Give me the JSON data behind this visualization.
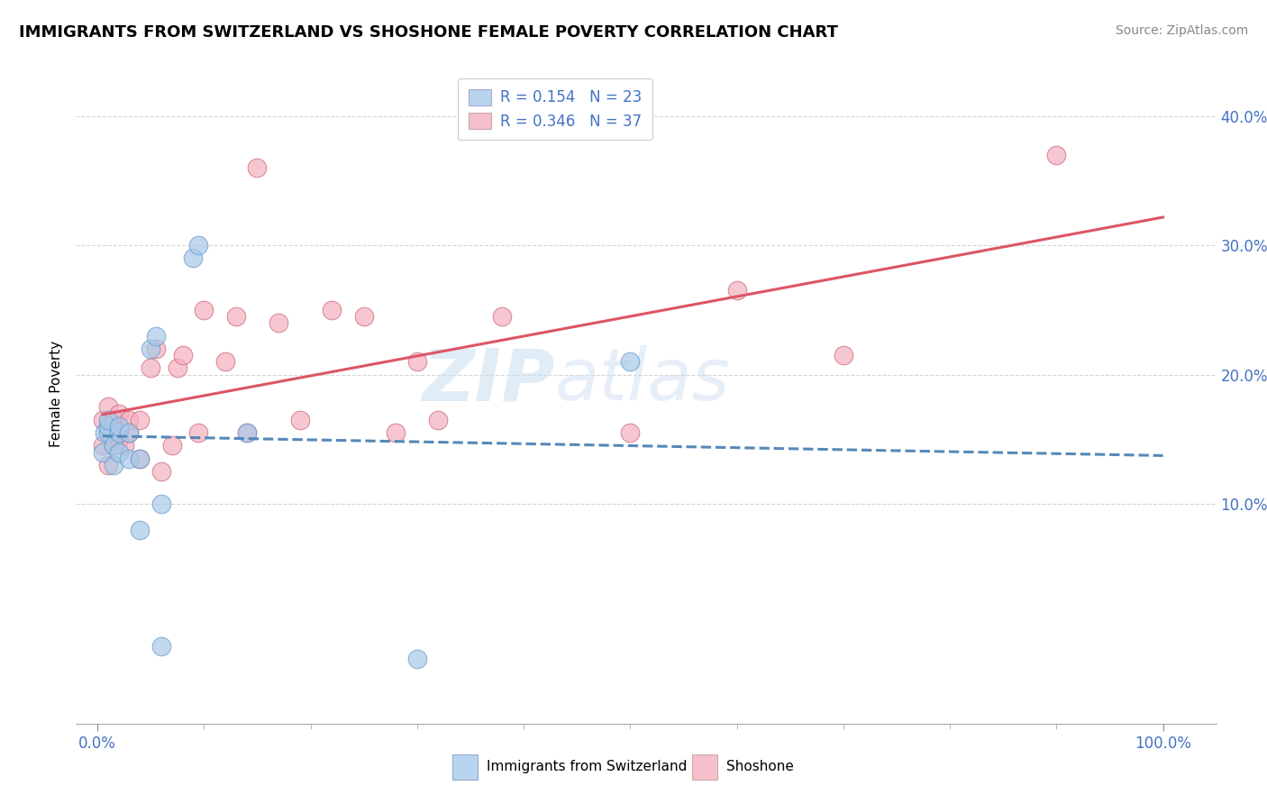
{
  "title": "IMMIGRANTS FROM SWITZERLAND VS SHOSHONE FEMALE POVERTY CORRELATION CHART",
  "source": "Source: ZipAtlas.com",
  "ylabel": "Female Poverty",
  "watermark": "ZIPatlas",
  "xlim": [
    -0.02,
    1.05
  ],
  "ylim": [
    -0.07,
    0.44
  ],
  "yticks": [
    0.1,
    0.2,
    0.3,
    0.4
  ],
  "ytick_labels": [
    "10.0%",
    "20.0%",
    "30.0%",
    "40.0%"
  ],
  "xtick_positions": [
    0.0,
    1.0
  ],
  "xtick_labels": [
    "0.0%",
    "100.0%"
  ],
  "legend_entries": [
    {
      "label": "R = 0.154   N = 23",
      "color": "#b8d4ee"
    },
    {
      "label": "R = 0.346   N = 37",
      "color": "#f5c0ca"
    }
  ],
  "series1_color": "#a8c8e8",
  "series1_edge": "#6699cc",
  "series2_color": "#f5b0be",
  "series2_edge": "#cc6677",
  "trendline1_color": "#5588bb",
  "trendline2_color": "#dd5566",
  "legend_x_label1": "Immigrants from Switzerland",
  "legend_x_label2": "Shoshone",
  "blue_x": [
    0.005,
    0.007,
    0.01,
    0.01,
    0.01,
    0.015,
    0.015,
    0.02,
    0.02,
    0.02,
    0.03,
    0.03,
    0.04,
    0.04,
    0.05,
    0.055,
    0.06,
    0.06,
    0.09,
    0.095,
    0.14,
    0.3,
    0.5
  ],
  "blue_y": [
    0.14,
    0.155,
    0.155,
    0.16,
    0.165,
    0.13,
    0.145,
    0.14,
    0.155,
    0.16,
    0.135,
    0.155,
    0.135,
    0.08,
    0.22,
    0.23,
    0.1,
    -0.01,
    0.29,
    0.3,
    0.155,
    -0.02,
    0.21
  ],
  "pink_x": [
    0.005,
    0.005,
    0.01,
    0.01,
    0.015,
    0.015,
    0.02,
    0.02,
    0.025,
    0.03,
    0.03,
    0.04,
    0.04,
    0.05,
    0.055,
    0.06,
    0.07,
    0.075,
    0.08,
    0.095,
    0.1,
    0.12,
    0.13,
    0.14,
    0.15,
    0.17,
    0.19,
    0.22,
    0.25,
    0.28,
    0.3,
    0.32,
    0.38,
    0.5,
    0.6,
    0.7,
    0.9
  ],
  "pink_y": [
    0.145,
    0.165,
    0.13,
    0.175,
    0.145,
    0.165,
    0.15,
    0.17,
    0.145,
    0.155,
    0.165,
    0.135,
    0.165,
    0.205,
    0.22,
    0.125,
    0.145,
    0.205,
    0.215,
    0.155,
    0.25,
    0.21,
    0.245,
    0.155,
    0.36,
    0.24,
    0.165,
    0.25,
    0.245,
    0.155,
    0.21,
    0.165,
    0.245,
    0.155,
    0.265,
    0.215,
    0.37
  ]
}
